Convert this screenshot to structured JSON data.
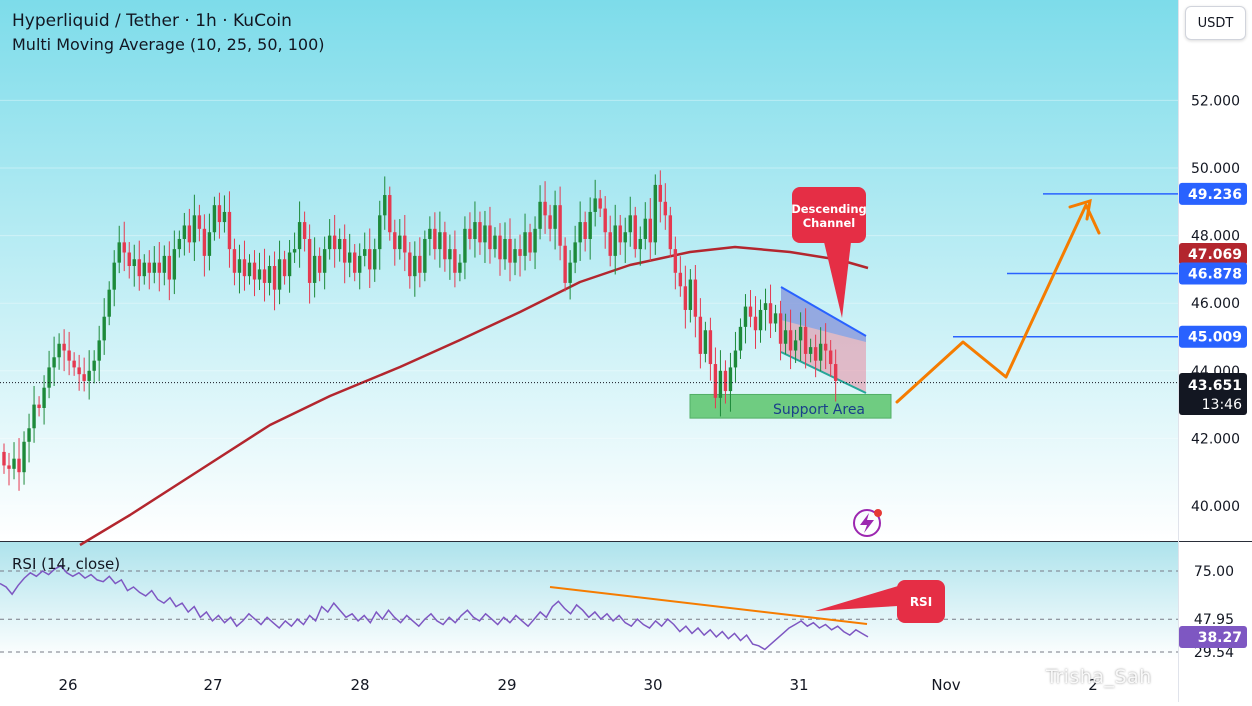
{
  "header": {
    "title": "Hyperliquid / Tether · 1h · KuCoin",
    "indicator": "Multi Moving Average (10, 25, 50, 100)"
  },
  "currency_button": "USDT",
  "rsi_label": "RSI (14, close)",
  "watermark": "Trisha_Sah",
  "colors": {
    "background_top": "#7ddcea",
    "background_bottom": "#ffffff",
    "candle_up": "#1d8a3a",
    "candle_down": "#e53950",
    "moving_average": "#b3262e",
    "level_line": "#2962ff",
    "projection": "#f57c00",
    "rsi_line": "#7e57c2",
    "rsi_trendline": "#f57c00",
    "callout": "#e52e45",
    "support_area": "#5cc56d"
  },
  "annotations": {
    "descending_channel": "Descending\nChannel",
    "support_area": "Support Area",
    "rsi_callout": "RSI"
  },
  "price_badges": {
    "current_price": "43.651",
    "countdown": "13:46",
    "ma_value": "47.069",
    "rsi_value": "38.27"
  },
  "chart_data": [
    {
      "type": "candlestick",
      "title": "Hyperliquid / Tether · 1h · KuCoin",
      "x_ticks": [
        "26",
        "27",
        "28",
        "29",
        "30",
        "31",
        "Nov",
        "2"
      ],
      "y_ticks": [
        "52.000",
        "50.000",
        "48.000",
        "46.000",
        "44.000",
        "42.000",
        "40.000"
      ],
      "ylim": [
        39,
        54
      ],
      "last_price": 43.651,
      "horizontal_levels": [
        {
          "label": "49.236",
          "value": 49.236
        },
        {
          "label": "46.878",
          "value": 46.878
        },
        {
          "label": "45.009",
          "value": 45.009
        }
      ],
      "moving_average_last": 47.069,
      "ma_path": [
        [
          "10/25 21:00",
          39.5
        ],
        [
          "10/26 12:00",
          41.2
        ],
        [
          "10/27 00:00",
          42.6
        ],
        [
          "10/27 12:00",
          43.7
        ],
        [
          "10/28 00:00",
          44.4
        ],
        [
          "10/28 12:00",
          45.1
        ],
        [
          "10/29 00:00",
          45.9
        ],
        [
          "10/29 12:00",
          46.7
        ],
        [
          "10/30 00:00",
          47.3
        ],
        [
          "10/30 12:00",
          47.55
        ],
        [
          "10/31 00:00",
          47.35
        ],
        [
          "10/31 12:00",
          47.0
        ]
      ],
      "candles_hourly_close": [
        41.2,
        41.1,
        41.4,
        41.0,
        41.9,
        42.3,
        43.0,
        42.9,
        43.5,
        44.1,
        44.4,
        44.8,
        44.6,
        44.3,
        44.1,
        43.9,
        43.7,
        44.0,
        44.3,
        44.9,
        45.6,
        46.4,
        47.2,
        47.8,
        47.5,
        47.1,
        47.3,
        46.8,
        47.2,
        46.9,
        47.2,
        46.9,
        47.4,
        46.7,
        47.6,
        47.9,
        48.3,
        47.8,
        48.6,
        48.2,
        47.4,
        48.1,
        48.9,
        48.4,
        48.7,
        47.6,
        46.9,
        47.3,
        46.8,
        47.2,
        46.7,
        47.0,
        46.6,
        47.1,
        46.4,
        47.3,
        46.8,
        47.5,
        47.6,
        48.4,
        47.9,
        46.6,
        47.4,
        46.9,
        47.6,
        48.0,
        47.6,
        47.9,
        47.2,
        47.5,
        46.9,
        47.4,
        47.6,
        47.0,
        47.6,
        48.6,
        49.2,
        48.1,
        47.6,
        48.0,
        47.5,
        46.8,
        47.4,
        46.9,
        47.9,
        48.2,
        47.6,
        48.1,
        47.3,
        47.6,
        46.9,
        47.2,
        48.2,
        47.9,
        48.4,
        47.8,
        48.3,
        47.6,
        48.0,
        47.3,
        47.9,
        47.2,
        47.6,
        47.4,
        48.1,
        47.5,
        48.2,
        49.0,
        48.6,
        48.2,
        48.9,
        47.7,
        46.6,
        47.2,
        47.8,
        48.4,
        47.9,
        48.7,
        49.1,
        48.8,
        48.1,
        47.4,
        48.3,
        47.8,
        48.1,
        48.6,
        47.6,
        47.9,
        48.5,
        47.8,
        49.5,
        49.0,
        48.6,
        47.6,
        46.9,
        46.5,
        45.8,
        46.7,
        45.6,
        44.5,
        45.2,
        44.2,
        43.2,
        44.0,
        43.4,
        44.1,
        44.6,
        45.3,
        45.9,
        45.6,
        45.2,
        45.8,
        46.0,
        45.4,
        45.7,
        44.8,
        45.2,
        44.6,
        44.9,
        45.3,
        44.5,
        44.7,
        44.3,
        44.8,
        44.6,
        44.2,
        43.7
      ],
      "descending_channel": {
        "upper": [
          [
            46.5,
            "10/30 21:00"
          ],
          [
            45.1,
            "10/31 13:00"
          ]
        ],
        "lower": [
          [
            44.7,
            "10/30 21:00"
          ],
          [
            43.3,
            "10/31 13:00"
          ]
        ]
      },
      "support_area": {
        "low": 42.6,
        "high": 43.3
      },
      "projection_path": [
        43.1,
        45.0,
        43.9,
        49.1,
        48.1
      ]
    },
    {
      "type": "line",
      "title": "RSI (14, close)",
      "y_ticks": [
        "75.00",
        "47.95",
        "29.54"
      ],
      "levels": [
        75.0,
        47.95,
        29.54
      ],
      "last_value": 38.27,
      "values": [
        68,
        66,
        62,
        67,
        71,
        74,
        72,
        75,
        73,
        76,
        78,
        74,
        72,
        74,
        71,
        73,
        70,
        69,
        72,
        68,
        70,
        64,
        66,
        63,
        61,
        64,
        59,
        57,
        60,
        55,
        57,
        52,
        55,
        49,
        52,
        47,
        50,
        46,
        49,
        44,
        47,
        51,
        48,
        45,
        49,
        46,
        43,
        47,
        44,
        48,
        45,
        50,
        47,
        55,
        52,
        57,
        53,
        49,
        51,
        47,
        50,
        46,
        52,
        48,
        53,
        49,
        46,
        50,
        47,
        44,
        48,
        51,
        47,
        45,
        49,
        46,
        50,
        53,
        49,
        47,
        51,
        48,
        45,
        49,
        46,
        50,
        47,
        44,
        48,
        52,
        49,
        55,
        58,
        54,
        51,
        56,
        53,
        49,
        52,
        48,
        51,
        47,
        50,
        46,
        44,
        48,
        45,
        43,
        47,
        44,
        48,
        45,
        41,
        44,
        40,
        43,
        39,
        42,
        38,
        41,
        37,
        40,
        36,
        39,
        34,
        33,
        31,
        34,
        37,
        40,
        43,
        45,
        47,
        44,
        46,
        43,
        45,
        42,
        44,
        41,
        39,
        42,
        40,
        38
      ],
      "trendline": [
        [
          0.36,
          64
        ],
        [
          0.88,
          40
        ]
      ]
    }
  ]
}
